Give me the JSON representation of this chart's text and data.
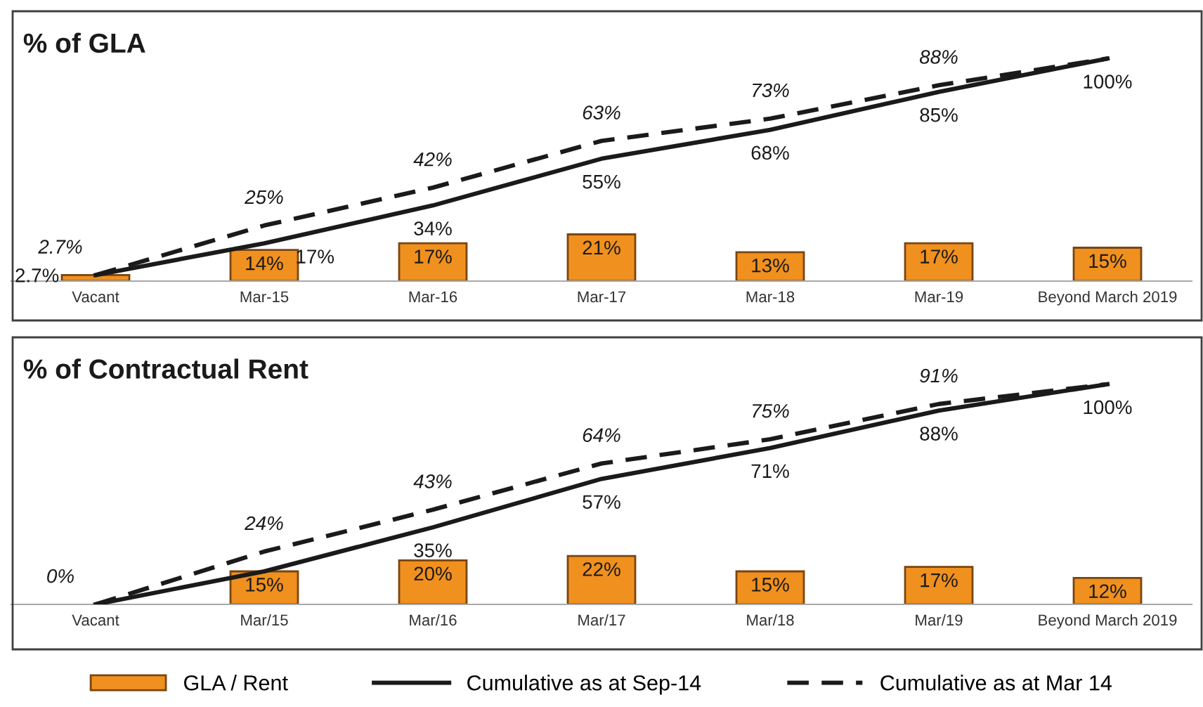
{
  "chart_data": [
    {
      "type": "bar",
      "title": "% of GLA",
      "categories": [
        "Vacant",
        "Mar-15",
        "Mar-16",
        "Mar-17",
        "Mar-18",
        "Mar-19",
        "Beyond March 2019"
      ],
      "ylim": [
        0,
        120
      ],
      "tick_labels": "x",
      "grid": false,
      "series": [
        {
          "color": "#f0901e",
          "values": [
            2.7,
            14,
            17,
            21,
            13,
            17,
            15
          ],
          "value_labels": [
            null,
            "14%",
            "17%",
            "21%",
            "13%",
            "17%",
            "15%"
          ]
        },
        {
          "type": "line",
          "line_style": "solid",
          "color": "#1a1a1a",
          "values": [
            2.7,
            17,
            34,
            55,
            68,
            85,
            100
          ],
          "value_labels": [
            "2.7%",
            "17%",
            "34%",
            "55%",
            "68%",
            "85%",
            "100%"
          ]
        },
        {
          "type": "line",
          "line_style": "dashed",
          "color": "#1a1a1a",
          "values": [
            2.7,
            25,
            42,
            63,
            73,
            88,
            100
          ],
          "value_labels": [
            "2.7%",
            "25%",
            "42%",
            "63%",
            "73%",
            "88%",
            null
          ]
        }
      ]
    },
    {
      "type": "bar",
      "title": "% of Contractual Rent",
      "categories": [
        "Vacant",
        "Mar/15",
        "Mar/16",
        "Mar/17",
        "Mar/18",
        "Mar/19",
        "Beyond March 2019"
      ],
      "ylim": [
        0,
        120
      ],
      "tick_labels": "x",
      "grid": false,
      "legend": "bottom",
      "series": [
        {
          "name": "GLA / Rent",
          "color": "#f0901e",
          "values": [
            null,
            15,
            20,
            22,
            15,
            17,
            12
          ],
          "value_labels": [
            null,
            "15%",
            "20%",
            "22%",
            "15%",
            "17%",
            "12%"
          ]
        },
        {
          "name": "Cumulative as at Sep-14",
          "type": "line",
          "line_style": "solid",
          "color": "#1a1a1a",
          "values": [
            0,
            15,
            35,
            57,
            71,
            88,
            100
          ],
          "value_labels": [
            null,
            null,
            "35%",
            "57%",
            "71%",
            "88%",
            "100%"
          ]
        },
        {
          "name": "Cumulative as at Mar 14",
          "type": "line",
          "line_style": "dashed",
          "color": "#1a1a1a",
          "values": [
            0,
            24,
            43,
            64,
            75,
            91,
            100
          ],
          "value_labels": [
            "0%",
            "24%",
            "43%",
            "64%",
            "75%",
            "91%",
            null
          ]
        }
      ]
    }
  ]
}
